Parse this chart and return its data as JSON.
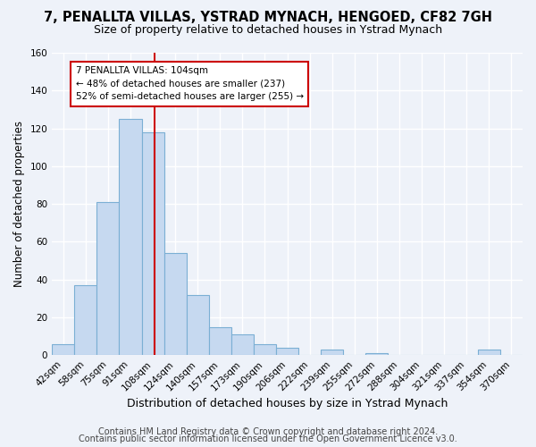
{
  "title": "7, PENALLTA VILLAS, YSTRAD MYNACH, HENGOED, CF82 7GH",
  "subtitle": "Size of property relative to detached houses in Ystrad Mynach",
  "xlabel": "Distribution of detached houses by size in Ystrad Mynach",
  "ylabel": "Number of detached properties",
  "bar_labels": [
    "42sqm",
    "58sqm",
    "75sqm",
    "91sqm",
    "108sqm",
    "124sqm",
    "140sqm",
    "157sqm",
    "173sqm",
    "190sqm",
    "206sqm",
    "222sqm",
    "239sqm",
    "255sqm",
    "272sqm",
    "288sqm",
    "304sqm",
    "321sqm",
    "337sqm",
    "354sqm",
    "370sqm"
  ],
  "bar_values": [
    6,
    37,
    81,
    125,
    118,
    54,
    32,
    15,
    11,
    6,
    4,
    0,
    3,
    0,
    1,
    0,
    0,
    0,
    0,
    3,
    0
  ],
  "bar_color": "#c6d9f0",
  "bar_edge_color": "#7bafd4",
  "vline_x_index": 4,
  "vline_color": "#cc0000",
  "annotation_line1": "7 PENALLTA VILLAS: 104sqm",
  "annotation_line2": "← 48% of detached houses are smaller (237)",
  "annotation_line3": "52% of semi-detached houses are larger (255) →",
  "ylim": [
    0,
    160
  ],
  "yticks": [
    0,
    20,
    40,
    60,
    80,
    100,
    120,
    140,
    160
  ],
  "footer1": "Contains HM Land Registry data © Crown copyright and database right 2024.",
  "footer2": "Contains public sector information licensed under the Open Government Licence v3.0.",
  "background_color": "#eef2f9",
  "grid_color": "#ffffff",
  "title_fontsize": 10.5,
  "subtitle_fontsize": 9,
  "xlabel_fontsize": 9,
  "ylabel_fontsize": 8.5,
  "tick_fontsize": 7.5,
  "footer_fontsize": 7
}
